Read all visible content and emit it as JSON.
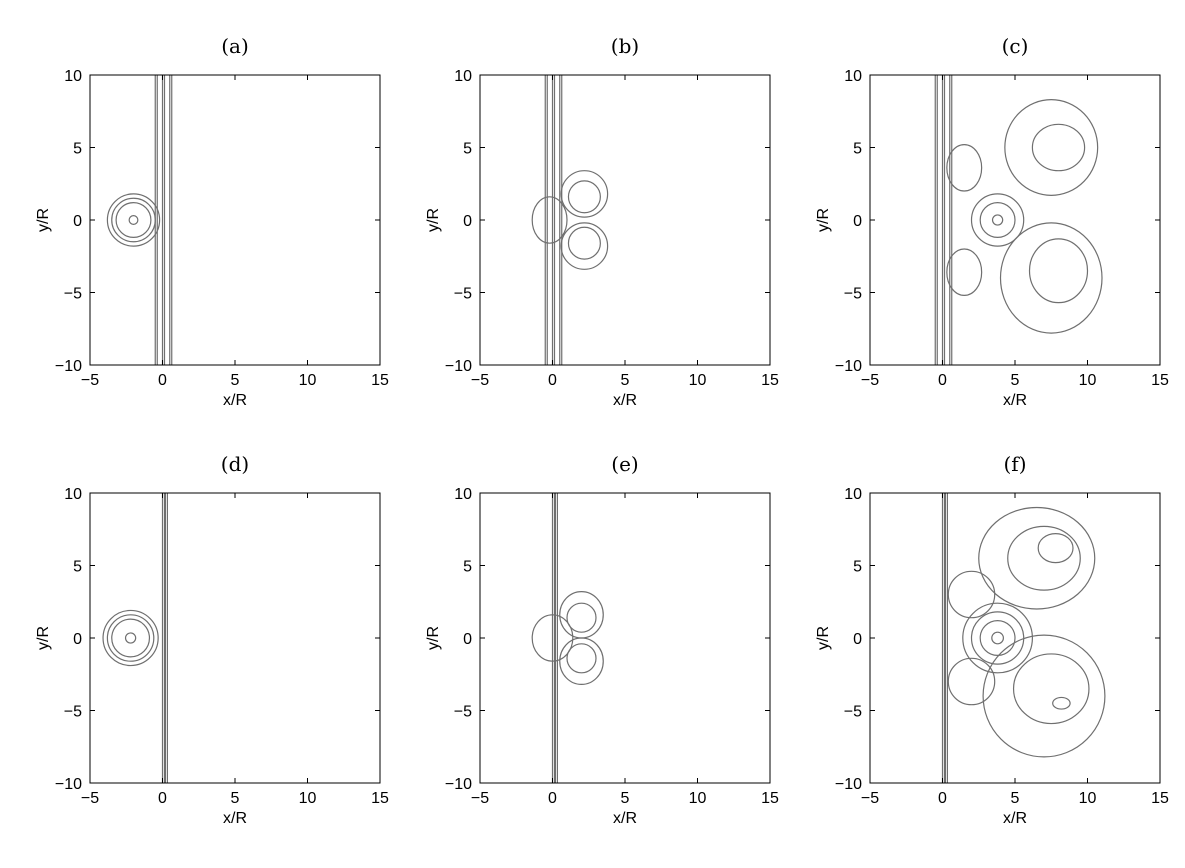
{
  "chart_data": [
    {
      "type": "contour",
      "title": "(a)",
      "xlabel": "x/R",
      "ylabel": "y/R",
      "xlim": [
        -5,
        15
      ],
      "ylim": [
        -10,
        10
      ],
      "xticks": [
        -5,
        0,
        5,
        10,
        15
      ],
      "yticks": [
        -10,
        -5,
        0,
        5,
        10
      ],
      "vortex_center": [
        -2,
        0
      ],
      "shock_x": [
        -0.5,
        0,
        0.5
      ],
      "vortex_rings": [
        0.3,
        1.2,
        1.5,
        1.8
      ],
      "lobes": []
    },
    {
      "type": "contour",
      "title": "(b)",
      "xlabel": "x/R",
      "ylabel": "y/R",
      "xlim": [
        -5,
        15
      ],
      "ylim": [
        -10,
        10
      ],
      "xticks": [
        -5,
        0,
        5,
        10,
        15
      ],
      "yticks": [
        -10,
        -5,
        0,
        5,
        10
      ],
      "vortex_center": [
        0.5,
        0
      ],
      "shock_x": [
        -0.5,
        0,
        0.5
      ],
      "vortex_rings": [],
      "lobes": [
        {
          "cx": 2.2,
          "cy": 1.8,
          "rx": 1.6,
          "ry": 1.6
        },
        {
          "cx": 2.2,
          "cy": 1.6,
          "rx": 1.1,
          "ry": 1.1
        },
        {
          "cx": 2.2,
          "cy": -1.8,
          "rx": 1.6,
          "ry": 1.6
        },
        {
          "cx": 2.2,
          "cy": -1.6,
          "rx": 1.1,
          "ry": 1.1
        },
        {
          "cx": -0.2,
          "cy": 0,
          "rx": 1.2,
          "ry": 1.6
        }
      ]
    },
    {
      "type": "contour",
      "title": "(c)",
      "xlabel": "x/R",
      "ylabel": "y/R",
      "xlim": [
        -5,
        15
      ],
      "ylim": [
        -10,
        10
      ],
      "xticks": [
        -5,
        0,
        5,
        10,
        15
      ],
      "yticks": [
        -10,
        -5,
        0,
        5,
        10
      ],
      "vortex_center": [
        3.8,
        0
      ],
      "shock_x": [
        -0.5,
        0,
        0.5
      ],
      "vortex_rings": [
        0.35,
        1.2,
        1.8
      ],
      "lobes": [
        {
          "cx": 7.5,
          "cy": 5.0,
          "rx": 3.2,
          "ry": 3.3
        },
        {
          "cx": 8.0,
          "cy": 5.0,
          "rx": 1.8,
          "ry": 1.6
        },
        {
          "cx": 7.5,
          "cy": -4.0,
          "rx": 3.5,
          "ry": 3.8
        },
        {
          "cx": 8.0,
          "cy": -3.5,
          "rx": 2.0,
          "ry": 2.2
        },
        {
          "cx": 1.5,
          "cy": 3.6,
          "rx": 1.2,
          "ry": 1.6
        },
        {
          "cx": 1.5,
          "cy": -3.6,
          "rx": 1.2,
          "ry": 1.6
        }
      ]
    },
    {
      "type": "contour",
      "title": "(d)",
      "xlabel": "x/R",
      "ylabel": "y/R",
      "xlim": [
        -5,
        15
      ],
      "ylim": [
        -10,
        10
      ],
      "xticks": [
        -5,
        0,
        5,
        10,
        15
      ],
      "yticks": [
        -10,
        -5,
        0,
        5,
        10
      ],
      "vortex_center": [
        -2.2,
        0
      ],
      "shock_x": [
        0,
        0.2
      ],
      "vortex_rings": [
        0.35,
        1.3,
        1.6,
        1.9
      ],
      "lobes": []
    },
    {
      "type": "contour",
      "title": "(e)",
      "xlabel": "x/R",
      "ylabel": "y/R",
      "xlim": [
        -5,
        15
      ],
      "ylim": [
        -10,
        10
      ],
      "xticks": [
        -5,
        0,
        5,
        10,
        15
      ],
      "yticks": [
        -10,
        -5,
        0,
        5,
        10
      ],
      "vortex_center": [
        0.5,
        0
      ],
      "shock_x": [
        0,
        0.2
      ],
      "vortex_rings": [],
      "lobes": [
        {
          "cx": 2.0,
          "cy": 1.6,
          "rx": 1.5,
          "ry": 1.6
        },
        {
          "cx": 2.0,
          "cy": 1.4,
          "rx": 1.0,
          "ry": 1.0
        },
        {
          "cx": 2.0,
          "cy": -1.6,
          "rx": 1.5,
          "ry": 1.6
        },
        {
          "cx": 2.0,
          "cy": -1.4,
          "rx": 1.0,
          "ry": 1.0
        },
        {
          "cx": 0.0,
          "cy": 0,
          "rx": 1.4,
          "ry": 1.6
        }
      ]
    },
    {
      "type": "contour",
      "title": "(f)",
      "xlabel": "x/R",
      "ylabel": "y/R",
      "xlim": [
        -5,
        15
      ],
      "ylim": [
        -10,
        10
      ],
      "xticks": [
        -5,
        0,
        5,
        10,
        15
      ],
      "yticks": [
        -10,
        -5,
        0,
        5,
        10
      ],
      "vortex_center": [
        3.8,
        0
      ],
      "shock_x": [
        0,
        0.2
      ],
      "vortex_rings": [
        0.4,
        1.2,
        1.8,
        2.4
      ],
      "lobes": [
        {
          "cx": 6.5,
          "cy": 5.5,
          "rx": 4.0,
          "ry": 3.5
        },
        {
          "cx": 7.0,
          "cy": 5.5,
          "rx": 2.5,
          "ry": 2.2
        },
        {
          "cx": 7.8,
          "cy": 6.2,
          "rx": 1.2,
          "ry": 1.0
        },
        {
          "cx": 7.0,
          "cy": -4.0,
          "rx": 4.2,
          "ry": 4.2
        },
        {
          "cx": 7.5,
          "cy": -3.5,
          "rx": 2.6,
          "ry": 2.4
        },
        {
          "cx": 8.2,
          "cy": -4.5,
          "rx": 0.6,
          "ry": 0.4
        },
        {
          "cx": 2.0,
          "cy": 3.0,
          "rx": 1.6,
          "ry": 1.6
        },
        {
          "cx": 2.0,
          "cy": -3.0,
          "rx": 1.6,
          "ry": 1.6
        }
      ]
    }
  ]
}
